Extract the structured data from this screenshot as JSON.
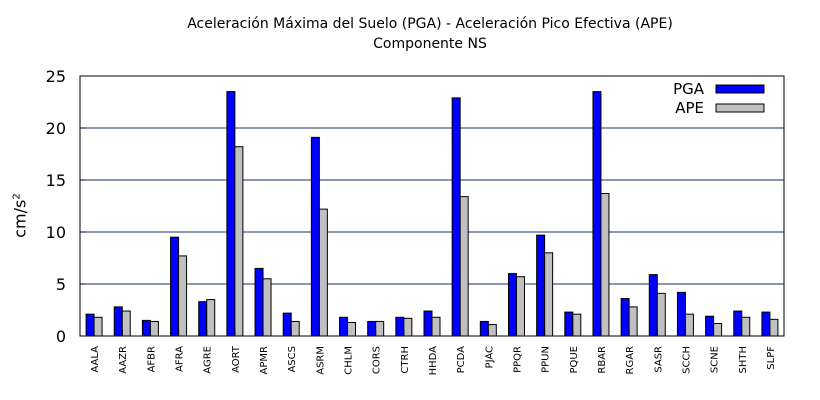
{
  "colors": {
    "pga": "#0000ff",
    "ape": "#c0c0c0",
    "grid": "#1a2f63",
    "axis": "#000000"
  },
  "chart_data": {
    "type": "bar",
    "title": "Aceleración Máxima del Suelo (PGA) -   Aceleración Pico Efectiva (APE)",
    "subtitle": "Componente NS",
    "xlabel": "",
    "ylabel": "cm/s",
    "ylabel_sup": "2",
    "ylim": [
      0,
      25
    ],
    "yticks": [
      0,
      5,
      10,
      15,
      20,
      25
    ],
    "grid": true,
    "legend_position": "top-right",
    "categories": [
      "AALA",
      "AAZR",
      "AFBR",
      "AFRA",
      "AGRE",
      "AORT",
      "APMR",
      "ASCS",
      "ASRM",
      "CHLM",
      "CORS",
      "CTRH",
      "HHDA",
      "PCDA",
      "PJAC",
      "PPQR",
      "PPUN",
      "PQUE",
      "RBAR",
      "RGAR",
      "SASR",
      "SCCH",
      "SCNE",
      "SHTH",
      "SLPF"
    ],
    "series": [
      {
        "name": "PGA",
        "values": [
          2.1,
          2.8,
          1.5,
          9.5,
          3.3,
          23.5,
          6.5,
          2.2,
          19.1,
          1.8,
          1.4,
          1.8,
          2.4,
          22.9,
          1.4,
          6.0,
          9.7,
          2.3,
          23.5,
          3.6,
          5.9,
          4.2,
          1.9,
          2.4,
          2.3
        ]
      },
      {
        "name": "APE",
        "values": [
          1.8,
          2.4,
          1.4,
          7.7,
          3.5,
          18.2,
          5.5,
          1.4,
          12.2,
          1.3,
          1.4,
          1.7,
          1.8,
          13.4,
          1.1,
          5.7,
          8.0,
          2.1,
          13.7,
          2.8,
          4.1,
          2.1,
          1.2,
          1.8,
          1.6
        ]
      }
    ]
  }
}
